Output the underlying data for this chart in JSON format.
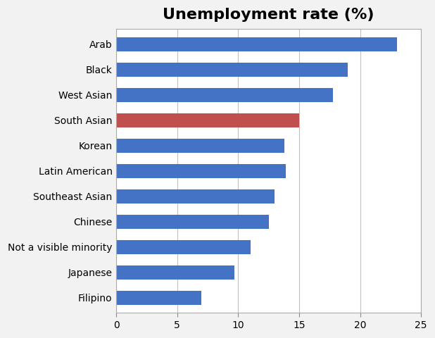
{
  "title": "Unemployment rate (%)",
  "categories": [
    "Arab",
    "Black",
    "West Asian",
    "South Asian",
    "Korean",
    "Latin American",
    "Southeast Asian",
    "Chinese",
    "Not a visible minority",
    "Japanese",
    "Filipino"
  ],
  "values": [
    23,
    19,
    17.8,
    15,
    13.8,
    13.9,
    13,
    12.5,
    11,
    9.7,
    7
  ],
  "bar_colors": [
    "#4472C4",
    "#4472C4",
    "#4472C4",
    "#C0504D",
    "#4472C4",
    "#4472C4",
    "#4472C4",
    "#4472C4",
    "#4472C4",
    "#4472C4",
    "#4472C4"
  ],
  "xlim": [
    0,
    25
  ],
  "xticks": [
    0,
    5,
    10,
    15,
    20,
    25
  ],
  "outer_bg": "#F2F2F2",
  "plot_bg": "#FFFFFF",
  "grid_color": "#C0C0C0",
  "title_fontsize": 16,
  "bar_height": 0.55,
  "label_fontsize": 10,
  "tick_fontsize": 10
}
